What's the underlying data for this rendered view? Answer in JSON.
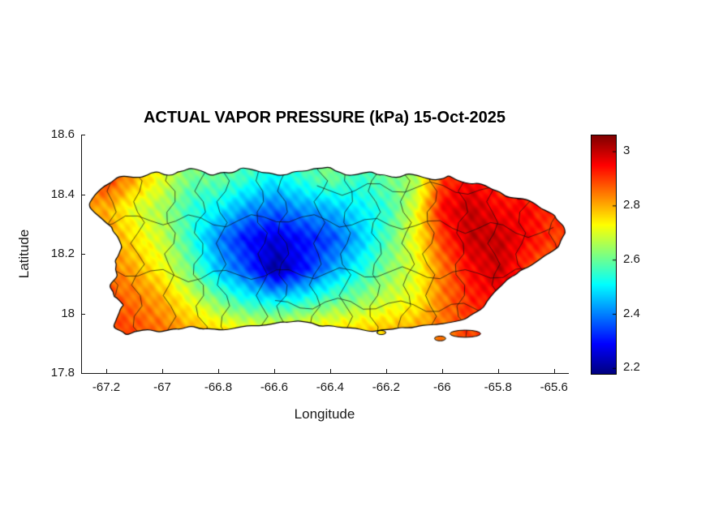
{
  "chart_data": {
    "type": "heatmap",
    "title": "ACTUAL VAPOR PRESSURE (kPa) 15-Oct-2025",
    "xlabel": "Longitude",
    "ylabel": "Latitude",
    "units": "kPa",
    "xlim": [
      -67.29,
      -65.55
    ],
    "ylim": [
      17.8,
      18.6
    ],
    "x_ticks": [
      -67.2,
      -67,
      -66.8,
      -66.6,
      -66.4,
      -66.2,
      -66,
      -65.8,
      -65.6
    ],
    "x_tick_labels": [
      "-67.2",
      "-67",
      "-66.8",
      "-66.6",
      "-66.4",
      "-66.2",
      "-66",
      "-65.8",
      "-65.6"
    ],
    "y_ticks": [
      18.6,
      18.4,
      18.2,
      18,
      17.8
    ],
    "y_tick_labels": [
      "18.6",
      "18.4",
      "18.2",
      "18",
      "17.8"
    ],
    "colorbar": {
      "colormap": "jet",
      "vmin": 2.18,
      "vmax": 3.06,
      "ticks": [
        3,
        2.8,
        2.6,
        2.4,
        2.2
      ],
      "tick_labels": [
        "3",
        "2.8",
        "2.6",
        "2.4",
        "2.2"
      ]
    },
    "grid": {
      "lon": [
        -67.3,
        -67.2,
        -67.1,
        -67.0,
        -66.9,
        -66.8,
        -66.7,
        -66.6,
        -66.5,
        -66.4,
        -66.3,
        -66.2,
        -66.1,
        -66.0,
        -65.9,
        -65.8,
        -65.7,
        -65.6,
        -65.5
      ],
      "lat": [
        18.55,
        18.45,
        18.35,
        18.25,
        18.15,
        18.05,
        17.95
      ],
      "values": [
        [
          2.75,
          2.8,
          2.75,
          2.7,
          2.65,
          2.6,
          2.6,
          2.55,
          2.6,
          2.65,
          2.6,
          2.65,
          2.7,
          2.85,
          2.9,
          2.9,
          2.85,
          2.85,
          2.85
        ],
        [
          2.85,
          2.9,
          2.8,
          2.7,
          2.6,
          2.6,
          2.55,
          2.5,
          2.55,
          2.6,
          2.55,
          2.6,
          2.65,
          2.9,
          2.95,
          2.9,
          2.9,
          2.85,
          2.85
        ],
        [
          2.8,
          2.8,
          2.7,
          2.65,
          2.55,
          2.5,
          2.42,
          2.38,
          2.42,
          2.45,
          2.5,
          2.55,
          2.7,
          2.95,
          3.0,
          2.95,
          2.95,
          2.9,
          2.9
        ],
        [
          2.8,
          2.82,
          2.75,
          2.68,
          2.55,
          2.4,
          2.3,
          2.26,
          2.3,
          2.35,
          2.45,
          2.58,
          2.72,
          2.9,
          3.0,
          3.0,
          2.95,
          2.9,
          2.9
        ],
        [
          2.85,
          2.85,
          2.8,
          2.72,
          2.6,
          2.45,
          2.35,
          2.2,
          2.3,
          2.42,
          2.52,
          2.62,
          2.7,
          2.85,
          2.95,
          3.0,
          2.9,
          2.85,
          2.85
        ],
        [
          2.9,
          2.88,
          2.85,
          2.8,
          2.7,
          2.6,
          2.52,
          2.48,
          2.52,
          2.58,
          2.62,
          2.68,
          2.72,
          2.85,
          2.92,
          2.95,
          2.9,
          2.85,
          2.85
        ],
        [
          2.9,
          2.9,
          2.88,
          2.85,
          2.8,
          2.75,
          2.72,
          2.72,
          2.74,
          2.75,
          2.76,
          2.78,
          2.8,
          2.85,
          2.9,
          2.9,
          2.88,
          2.85,
          2.85
        ]
      ]
    },
    "map": {
      "region": "Puerto Rico",
      "outline": [
        [
          -67.27,
          18.36
        ],
        [
          -67.21,
          18.43
        ],
        [
          -67.15,
          18.465
        ],
        [
          -67.09,
          18.455
        ],
        [
          -67.04,
          18.475
        ],
        [
          -66.97,
          18.465
        ],
        [
          -66.9,
          18.485
        ],
        [
          -66.83,
          18.465
        ],
        [
          -66.76,
          18.475
        ],
        [
          -66.7,
          18.49
        ],
        [
          -66.63,
          18.47
        ],
        [
          -66.56,
          18.465
        ],
        [
          -66.49,
          18.48
        ],
        [
          -66.41,
          18.49
        ],
        [
          -66.34,
          18.465
        ],
        [
          -66.26,
          18.475
        ],
        [
          -66.18,
          18.455
        ],
        [
          -66.11,
          18.47
        ],
        [
          -66.04,
          18.45
        ],
        [
          -65.98,
          18.46
        ],
        [
          -65.92,
          18.44
        ],
        [
          -65.85,
          18.43
        ],
        [
          -65.77,
          18.395
        ],
        [
          -65.69,
          18.375
        ],
        [
          -65.62,
          18.345
        ],
        [
          -65.575,
          18.3
        ],
        [
          -65.565,
          18.26
        ],
        [
          -65.6,
          18.215
        ],
        [
          -65.655,
          18.18
        ],
        [
          -65.72,
          18.145
        ],
        [
          -65.77,
          18.115
        ],
        [
          -65.825,
          18.06
        ],
        [
          -65.875,
          18.005
        ],
        [
          -65.95,
          17.975
        ],
        [
          -66.05,
          17.96
        ],
        [
          -66.15,
          17.95
        ],
        [
          -66.25,
          17.94
        ],
        [
          -66.35,
          17.955
        ],
        [
          -66.44,
          17.96
        ],
        [
          -66.52,
          17.975
        ],
        [
          -66.61,
          17.965
        ],
        [
          -66.7,
          17.955
        ],
        [
          -66.8,
          17.945
        ],
        [
          -66.9,
          17.955
        ],
        [
          -66.99,
          17.94
        ],
        [
          -67.06,
          17.945
        ],
        [
          -67.13,
          17.93
        ],
        [
          -67.18,
          17.955
        ],
        [
          -67.155,
          18.005
        ],
        [
          -67.14,
          18.03
        ],
        [
          -67.175,
          18.06
        ],
        [
          -67.19,
          18.095
        ],
        [
          -67.16,
          18.135
        ],
        [
          -67.175,
          18.18
        ],
        [
          -67.145,
          18.225
        ],
        [
          -67.165,
          18.265
        ],
        [
          -67.2,
          18.3
        ]
      ],
      "islets": [
        {
          "cx": -65.92,
          "cy": 17.932,
          "rx": 0.055,
          "ry": 0.012
        },
        {
          "cx": -66.01,
          "cy": 17.916,
          "rx": 0.02,
          "ry": 0.008
        },
        {
          "cx": -66.22,
          "cy": 17.936,
          "rx": 0.016,
          "ry": 0.007
        }
      ]
    }
  }
}
